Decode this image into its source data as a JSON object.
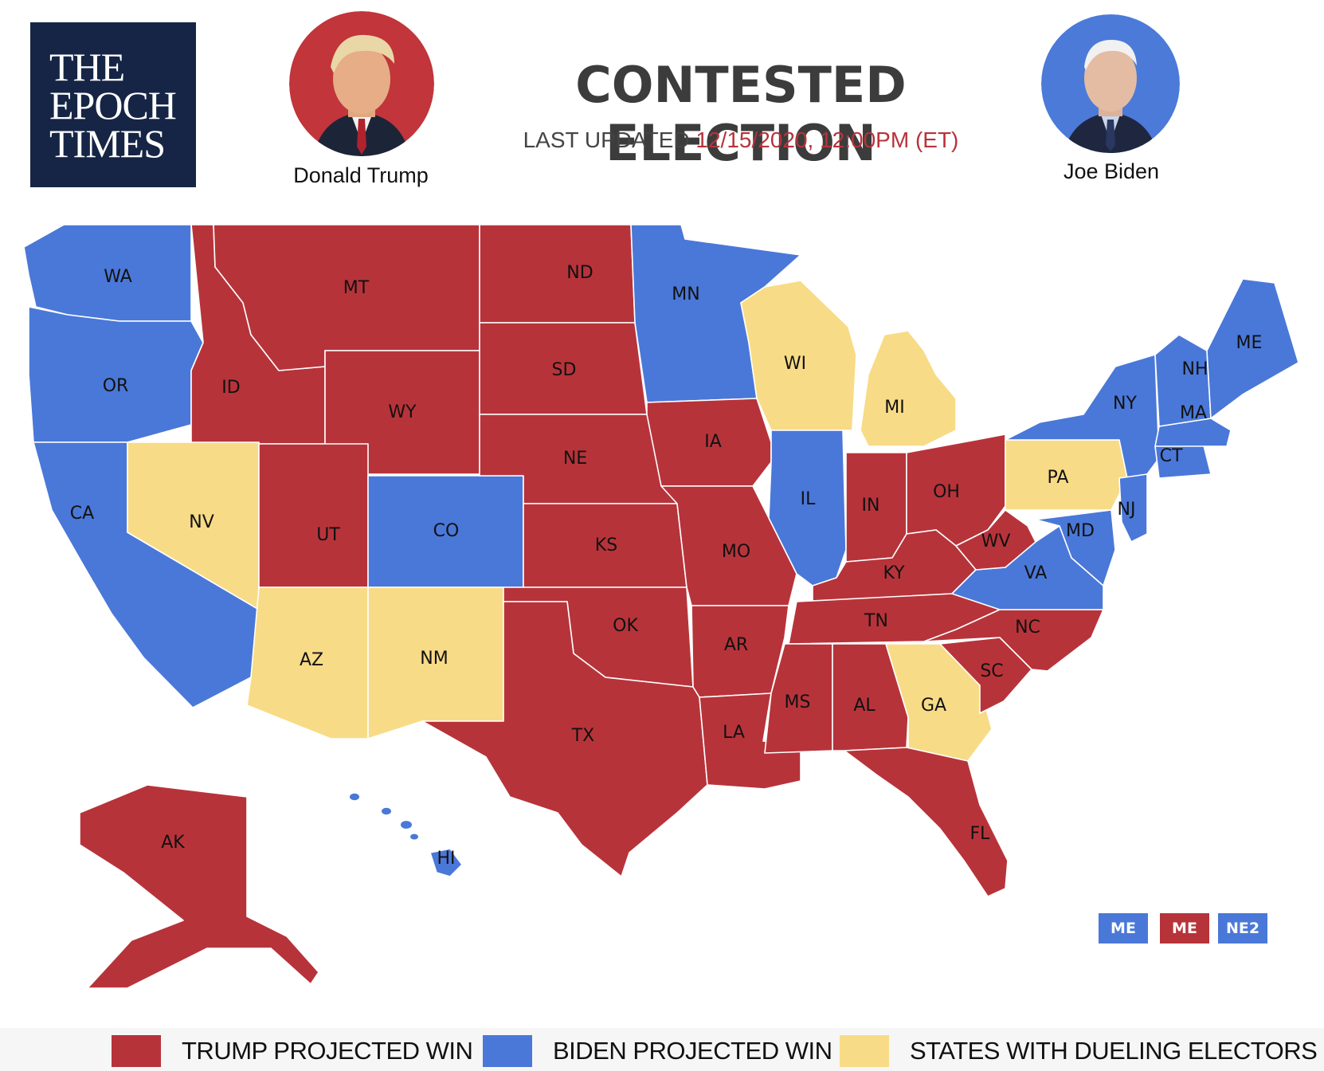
{
  "brand": {
    "logo_lines": [
      "THE",
      "EPOCH",
      "TIMES"
    ]
  },
  "header": {
    "title": "CONTESTED ELECTION",
    "updated_label": "LAST UPDATED",
    "updated_value": "12/15/2020, 12:00PM (ET)"
  },
  "candidates": {
    "left": {
      "name": "Donald Trump",
      "ring_color": "#c1353b"
    },
    "right": {
      "name": "Joe Biden",
      "ring_color": "#4b7ad8"
    }
  },
  "colors": {
    "trump": "#b7333a",
    "biden": "#4a78d8",
    "dueling": "#f8db86"
  },
  "states": [
    {
      "code": "WA",
      "status": "biden"
    },
    {
      "code": "OR",
      "status": "biden"
    },
    {
      "code": "CA",
      "status": "biden"
    },
    {
      "code": "ID",
      "status": "trump"
    },
    {
      "code": "MT",
      "status": "trump"
    },
    {
      "code": "WY",
      "status": "trump"
    },
    {
      "code": "NV",
      "status": "dueling"
    },
    {
      "code": "UT",
      "status": "trump"
    },
    {
      "code": "CO",
      "status": "biden"
    },
    {
      "code": "AZ",
      "status": "dueling"
    },
    {
      "code": "NM",
      "status": "dueling"
    },
    {
      "code": "ND",
      "status": "trump"
    },
    {
      "code": "SD",
      "status": "trump"
    },
    {
      "code": "NE",
      "status": "trump"
    },
    {
      "code": "KS",
      "status": "trump"
    },
    {
      "code": "OK",
      "status": "trump"
    },
    {
      "code": "TX",
      "status": "trump"
    },
    {
      "code": "MN",
      "status": "biden"
    },
    {
      "code": "IA",
      "status": "trump"
    },
    {
      "code": "MO",
      "status": "trump"
    },
    {
      "code": "AR",
      "status": "trump"
    },
    {
      "code": "LA",
      "status": "trump"
    },
    {
      "code": "WI",
      "status": "dueling"
    },
    {
      "code": "IL",
      "status": "biden"
    },
    {
      "code": "MI",
      "status": "dueling"
    },
    {
      "code": "IN",
      "status": "trump"
    },
    {
      "code": "OH",
      "status": "trump"
    },
    {
      "code": "KY",
      "status": "trump"
    },
    {
      "code": "TN",
      "status": "trump"
    },
    {
      "code": "MS",
      "status": "trump"
    },
    {
      "code": "AL",
      "status": "trump"
    },
    {
      "code": "GA",
      "status": "dueling"
    },
    {
      "code": "FL",
      "status": "trump"
    },
    {
      "code": "SC",
      "status": "trump"
    },
    {
      "code": "NC",
      "status": "trump"
    },
    {
      "code": "VA",
      "status": "biden"
    },
    {
      "code": "WV",
      "status": "trump"
    },
    {
      "code": "PA",
      "status": "dueling"
    },
    {
      "code": "NY",
      "status": "biden"
    },
    {
      "code": "NJ",
      "status": "biden"
    },
    {
      "code": "MD",
      "status": "biden"
    },
    {
      "code": "CT",
      "status": "biden"
    },
    {
      "code": "MA",
      "status": "biden"
    },
    {
      "code": "NH",
      "status": "biden"
    },
    {
      "code": "ME",
      "status": "biden"
    },
    {
      "code": "AK",
      "status": "trump"
    },
    {
      "code": "HI",
      "status": "biden"
    }
  ],
  "districts": [
    {
      "label": "ME",
      "status": "biden"
    },
    {
      "label": "ME",
      "status": "trump"
    },
    {
      "label": "NE2",
      "status": "biden"
    }
  ],
  "legend": [
    {
      "label": "TRUMP PROJECTED WIN",
      "status": "trump"
    },
    {
      "label": "BIDEN PROJECTED WIN",
      "status": "biden"
    },
    {
      "label": "STATES WITH DUELING ELECTORS",
      "status": "dueling"
    }
  ]
}
